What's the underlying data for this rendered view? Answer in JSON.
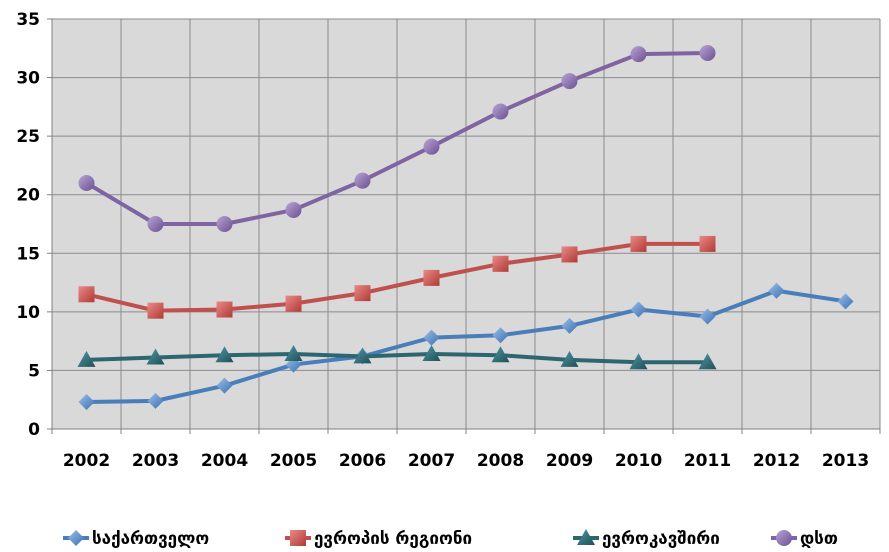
{
  "chart_data": {
    "type": "line",
    "title": "",
    "xlabel": "",
    "ylabel": "",
    "ylim": [
      0,
      35
    ],
    "yticks": [
      "0",
      "5",
      "10",
      "15",
      "20",
      "25",
      "30",
      "35"
    ],
    "categories": [
      "2002",
      "2003",
      "2004",
      "2005",
      "2006",
      "2007",
      "2008",
      "2009",
      "2010",
      "2011",
      "2012",
      "2013"
    ],
    "grid": "vertical-and-horizontal",
    "legend": "bottom",
    "series": [
      {
        "name": "საქართველო",
        "color": "#4a7ebb",
        "marker": "diamond",
        "values": [
          2.3,
          2.4,
          3.7,
          5.5,
          6.2,
          7.8,
          8.0,
          8.8,
          10.2,
          9.6,
          11.8,
          10.9
        ]
      },
      {
        "name": "ევროპის რეგიონი",
        "color": "#c0504d",
        "marker": "square",
        "values": [
          11.5,
          10.1,
          10.2,
          10.7,
          11.6,
          12.9,
          14.1,
          14.9,
          15.8,
          15.8,
          null,
          null
        ]
      },
      {
        "name": "ევროკავშირი",
        "color": "#2e6670",
        "marker": "triangle",
        "values": [
          5.9,
          6.1,
          6.3,
          6.4,
          6.2,
          6.4,
          6.3,
          5.9,
          5.7,
          5.7,
          null,
          null
        ]
      },
      {
        "name": "დსთ",
        "color": "#8064a2",
        "marker": "circle",
        "values": [
          21.0,
          17.5,
          17.5,
          18.7,
          21.2,
          24.1,
          27.1,
          29.7,
          32.0,
          32.1,
          null,
          null
        ]
      }
    ]
  }
}
